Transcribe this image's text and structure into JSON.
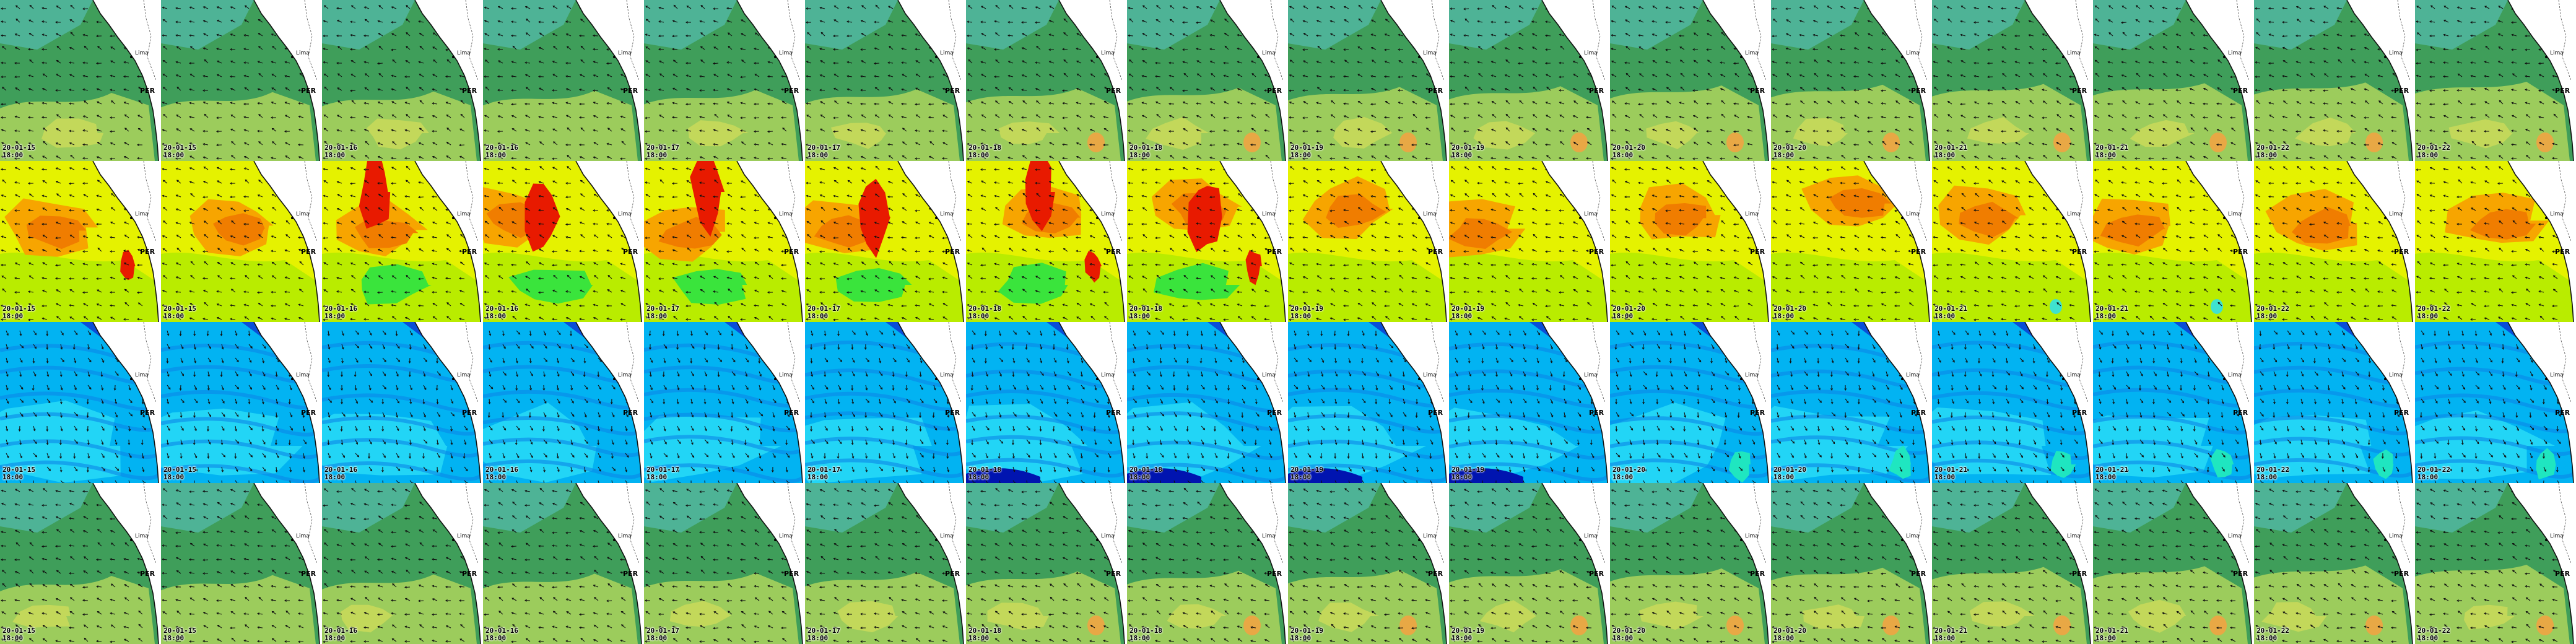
{
  "layout": {
    "rows": 4,
    "columns": 16
  },
  "timestamps": [
    {
      "date": "20-01-15",
      "time": "18:00"
    },
    {
      "date": "20-01-15",
      "time": "18:00"
    },
    {
      "date": "20-01-16",
      "time": "18:00"
    },
    {
      "date": "20-01-16",
      "time": "18:00"
    },
    {
      "date": "20-01-17",
      "time": "18:00"
    },
    {
      "date": "20-01-17",
      "time": "18:00"
    },
    {
      "date": "20-01-18",
      "time": "18:00"
    },
    {
      "date": "20-01-18",
      "time": "18:00"
    },
    {
      "date": "20-01-19",
      "time": "18:00"
    },
    {
      "date": "20-01-19",
      "time": "18:00"
    },
    {
      "date": "20-01-20",
      "time": "18:00"
    },
    {
      "date": "20-01-20",
      "time": "18:00"
    },
    {
      "date": "20-01-21",
      "time": "18:00"
    },
    {
      "date": "20-01-21",
      "time": "18:00"
    },
    {
      "date": "20-01-22",
      "time": "18:00"
    },
    {
      "date": "20-01-22",
      "time": "18:00"
    }
  ],
  "coast_labels": [
    "Lima",
    "PER"
  ],
  "rows": [
    {
      "layer": "wind",
      "palette": [
        "#4eb396",
        "#3f9e5a",
        "#9ccc5c",
        "#c3d85a",
        "#e8a845",
        "#2aa3df"
      ]
    },
    {
      "layer": "wave",
      "palette": [
        "#e5f200",
        "#b9ec00",
        "#f7a500",
        "#f07d00",
        "#e81a00",
        "#3ae43c",
        "#3fe2cf"
      ]
    },
    {
      "layer": "period",
      "palette": [
        "#02b3f2",
        "#0b86e8",
        "#0a4ed8",
        "#0014b0",
        "#22d5f6",
        "#1fe6c0"
      ]
    },
    {
      "layer": "wind-repeat",
      "palette": [
        "#4eb396",
        "#3f9e5a",
        "#9ccc5c",
        "#c3d85a",
        "#e8a845",
        "#2aa3df"
      ]
    }
  ],
  "colors": {
    "land": "#ffffff",
    "coast": "#111111",
    "arrow": "#111111"
  }
}
